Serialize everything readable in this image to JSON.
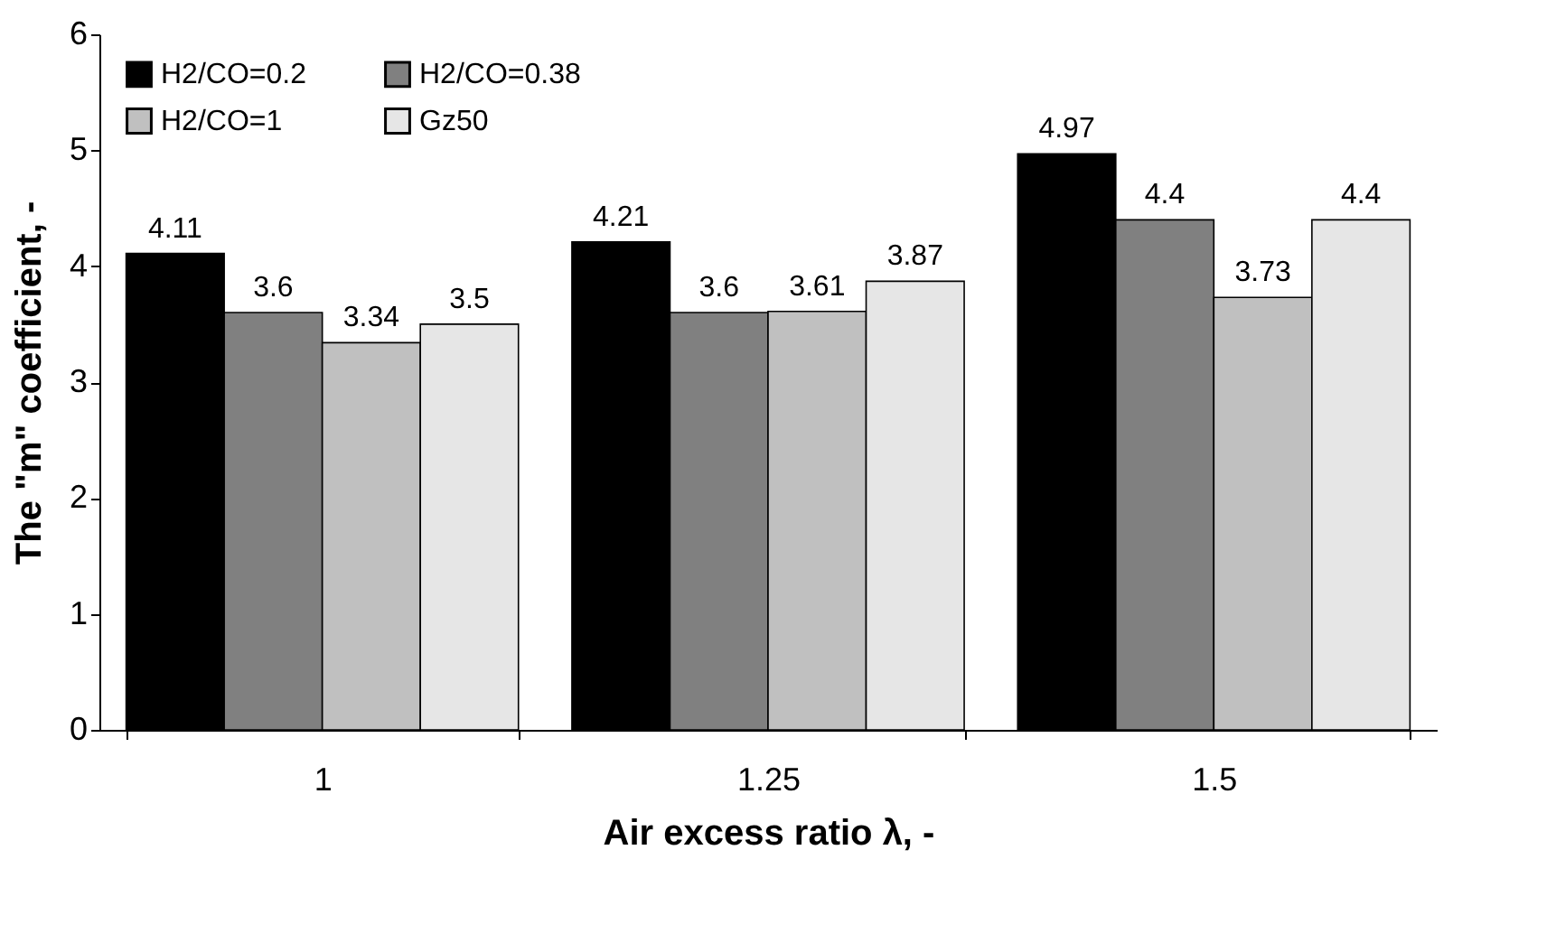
{
  "chart_data": {
    "type": "bar",
    "xlabel": "Air excess ratio λ, -",
    "ylabel": "The \"m\" coefficient, -",
    "categories": [
      "1",
      "1.25",
      "1.5"
    ],
    "series": [
      {
        "name": "H2/CO=0.2",
        "color": "#000000",
        "values": [
          4.11,
          4.21,
          4.97
        ]
      },
      {
        "name": "H2/CO=0.38",
        "color": "#808080",
        "values": [
          3.6,
          3.6,
          4.4
        ]
      },
      {
        "name": "H2/CO=1",
        "color": "#c0c0c0",
        "values": [
          3.34,
          3.61,
          3.73
        ]
      },
      {
        "name": "Gz50",
        "color": "#e6e6e6",
        "values": [
          3.5,
          3.87,
          4.4
        ]
      }
    ],
    "ylim": [
      0,
      6
    ],
    "yticks": [
      0,
      1,
      2,
      3,
      4,
      5,
      6
    ],
    "grid": false,
    "legend": "top left",
    "data_labels": true
  }
}
